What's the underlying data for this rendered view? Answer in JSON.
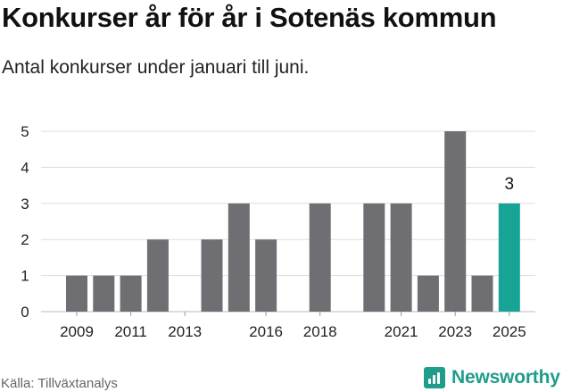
{
  "header": {
    "title": "Konkurser år för år i Sotenäs kommun",
    "subtitle": "Antal konkurser under januari till juni."
  },
  "footer": {
    "source": "Källa: Tillväxtanalys",
    "brand": "Newsworthy"
  },
  "colors": {
    "bar": "#6f6e73",
    "highlight": "#17a396",
    "grid": "#dddddd",
    "axis_text": "#222222"
  },
  "chart_data": {
    "type": "bar",
    "title": "Konkurser år för år i Sotenäs kommun",
    "subtitle": "Antal konkurser under januari till juni.",
    "categories": [
      2009,
      2010,
      2011,
      2012,
      2013,
      2014,
      2015,
      2016,
      2017,
      2018,
      2019,
      2020,
      2021,
      2022,
      2023,
      2024,
      2025
    ],
    "values": [
      1,
      1,
      1,
      2,
      0,
      2,
      3,
      2,
      0,
      3,
      0,
      3,
      3,
      1,
      5,
      1,
      3
    ],
    "x_tick_labels": [
      "2009",
      "2011",
      "2013",
      "2016",
      "2018",
      "2021",
      "2023",
      "2025"
    ],
    "y_ticks": [
      "0",
      "1",
      "2",
      "3",
      "4",
      "5"
    ],
    "ylim": [
      0,
      5
    ],
    "highlight": {
      "category": 2025,
      "label": "3"
    },
    "grid": true,
    "xlabel": "",
    "ylabel": ""
  }
}
